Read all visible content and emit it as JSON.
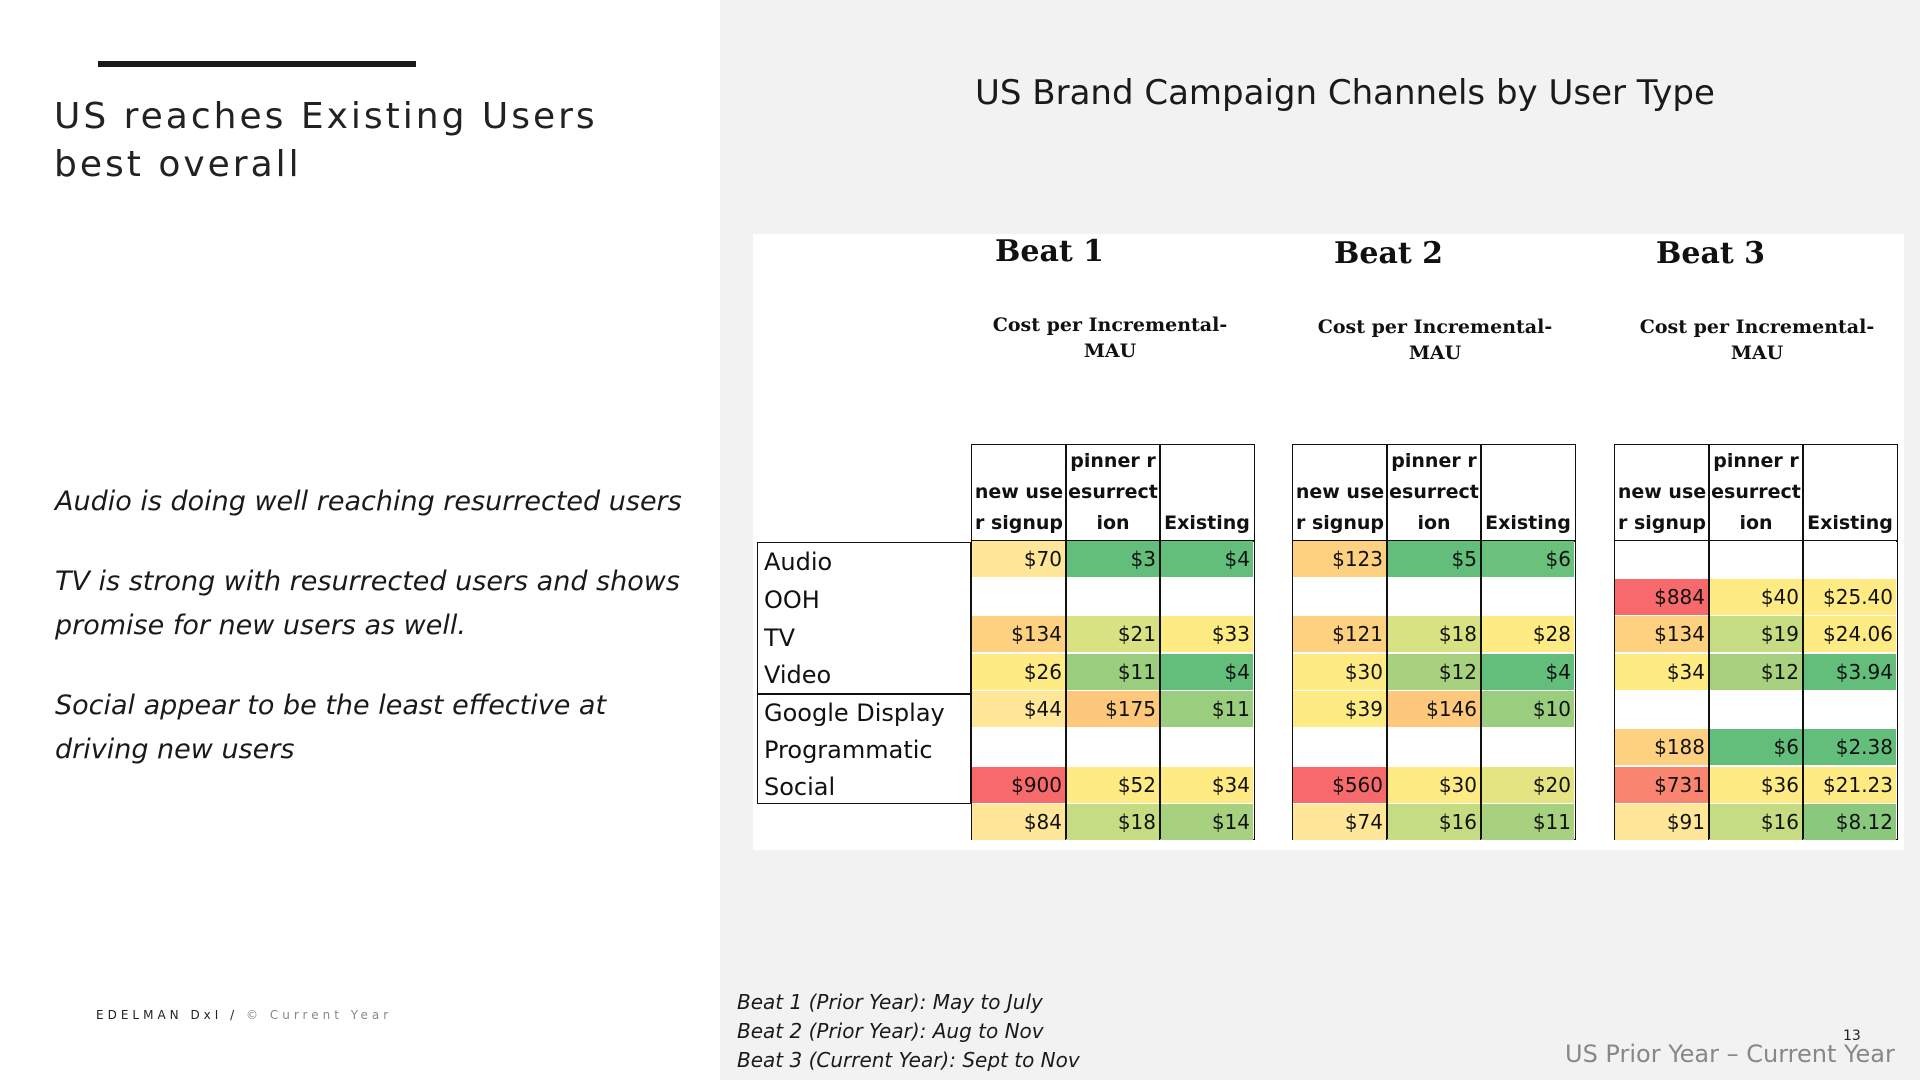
{
  "left": {
    "heading": "US reaches Existing Users best overall",
    "bullets": [
      "Audio is doing well reaching resurrected users",
      "TV is strong with resurrected users and shows promise for new users as well.",
      "Social appear to be the least effective at driving new users"
    ],
    "footer_brand": "EDELMAN DxI",
    "footer_sep": "/",
    "footer_year": "© Current Year"
  },
  "right": {
    "title": "US Brand Campaign Channels by User Type",
    "metric_label": "Cost per Incremental-MAU",
    "column_headers": [
      "new user signup",
      "pinner resurrection",
      "Existing"
    ],
    "channels": [
      "Audio",
      "OOH",
      "TV",
      "Video",
      "Google Display",
      "Programmatic",
      "Social"
    ],
    "notes": [
      "Beat 1 (Prior Year): May to July",
      "Beat 2 (Prior Year): Aug to Nov",
      "Beat 3 (Current Year): Sept to Nov"
    ],
    "page_number": "13",
    "period": "US Prior Year – Current Year",
    "beats": [
      {
        "title": "Beat 1",
        "rows": [
          [
            {
              "v": "$70",
              "c": "#ffe699"
            },
            {
              "v": "$3",
              "c": "#63be7b"
            },
            {
              "v": "$4",
              "c": "#63be7b"
            }
          ],
          [
            {
              "v": "",
              "c": "#ffffff"
            },
            {
              "v": "",
              "c": "#ffffff"
            },
            {
              "v": "",
              "c": "#ffffff"
            }
          ],
          [
            {
              "v": "$134",
              "c": "#fdd17f"
            },
            {
              "v": "$21",
              "c": "#d8e283"
            },
            {
              "v": "$33",
              "c": "#ffeb84"
            }
          ],
          [
            {
              "v": "$26",
              "c": "#ffeb84"
            },
            {
              "v": "$11",
              "c": "#9acd7e"
            },
            {
              "v": "$4",
              "c": "#63be7b"
            }
          ],
          [
            {
              "v": "$44",
              "c": "#ffe699"
            },
            {
              "v": "$175",
              "c": "#fdc77c"
            },
            {
              "v": "$11",
              "c": "#9acd7e"
            }
          ],
          [
            {
              "v": "",
              "c": "#ffffff"
            },
            {
              "v": "",
              "c": "#ffffff"
            },
            {
              "v": "",
              "c": "#ffffff"
            }
          ],
          [
            {
              "v": "$900",
              "c": "#f8696b"
            },
            {
              "v": "$52",
              "c": "#ffeb84"
            },
            {
              "v": "$34",
              "c": "#ffeb84"
            }
          ],
          [
            {
              "v": "$84",
              "c": "#ffe699"
            },
            {
              "v": "$18",
              "c": "#c5dc82"
            },
            {
              "v": "$14",
              "c": "#a8d17f"
            }
          ]
        ]
      },
      {
        "title": "Beat 2",
        "rows": [
          [
            {
              "v": "$123",
              "c": "#fdd17f"
            },
            {
              "v": "$5",
              "c": "#63be7b"
            },
            {
              "v": "$6",
              "c": "#6ac17c"
            }
          ],
          [
            {
              "v": "",
              "c": "#ffffff"
            },
            {
              "v": "",
              "c": "#ffffff"
            },
            {
              "v": "",
              "c": "#ffffff"
            }
          ],
          [
            {
              "v": "$121",
              "c": "#fdd17f"
            },
            {
              "v": "$18",
              "c": "#d8e283"
            },
            {
              "v": "$28",
              "c": "#ffeb84"
            }
          ],
          [
            {
              "v": "$30",
              "c": "#ffeb84"
            },
            {
              "v": "$12",
              "c": "#a8d17f"
            },
            {
              "v": "$4",
              "c": "#63be7b"
            }
          ],
          [
            {
              "v": "$39",
              "c": "#ffeb84"
            },
            {
              "v": "$146",
              "c": "#fdc77c"
            },
            {
              "v": "$10",
              "c": "#9acd7e"
            }
          ],
          [
            {
              "v": "",
              "c": "#ffffff"
            },
            {
              "v": "",
              "c": "#ffffff"
            },
            {
              "v": "",
              "c": "#ffffff"
            }
          ],
          [
            {
              "v": "$560",
              "c": "#f8696b"
            },
            {
              "v": "$30",
              "c": "#ffeb84"
            },
            {
              "v": "$20",
              "c": "#e4e483"
            }
          ],
          [
            {
              "v": "$74",
              "c": "#ffe699"
            },
            {
              "v": "$16",
              "c": "#c5dc82"
            },
            {
              "v": "$11",
              "c": "#a8d17f"
            }
          ]
        ]
      },
      {
        "title": "Beat 3",
        "rows": [
          [
            {
              "v": "",
              "c": "#ffffff"
            },
            {
              "v": "",
              "c": "#ffffff"
            },
            {
              "v": "",
              "c": "#ffffff"
            }
          ],
          [
            {
              "v": "$884",
              "c": "#f8696b"
            },
            {
              "v": "$40",
              "c": "#ffeb84"
            },
            {
              "v": "$25.40",
              "c": "#ffeb84"
            }
          ],
          [
            {
              "v": "$134",
              "c": "#fdd17f"
            },
            {
              "v": "$19",
              "c": "#c5dc82"
            },
            {
              "v": "$24.06",
              "c": "#ffeb84"
            }
          ],
          [
            {
              "v": "$34",
              "c": "#ffeb84"
            },
            {
              "v": "$12",
              "c": "#a8d17f"
            },
            {
              "v": "$3.94",
              "c": "#63be7b"
            }
          ],
          [
            {
              "v": "",
              "c": "#ffffff"
            },
            {
              "v": "",
              "c": "#ffffff"
            },
            {
              "v": "",
              "c": "#ffffff"
            }
          ],
          [
            {
              "v": "$188",
              "c": "#fdd17f"
            },
            {
              "v": "$6",
              "c": "#63be7b"
            },
            {
              "v": "$2.38",
              "c": "#63be7b"
            }
          ],
          [
            {
              "v": "$731",
              "c": "#f98470"
            },
            {
              "v": "$36",
              "c": "#ffeb84"
            },
            {
              "v": "$21.23",
              "c": "#ffeb84"
            }
          ],
          [
            {
              "v": "$91",
              "c": "#ffe699"
            },
            {
              "v": "$16",
              "c": "#c5dc82"
            },
            {
              "v": "$8.12",
              "c": "#8ac87d"
            }
          ]
        ]
      }
    ]
  }
}
